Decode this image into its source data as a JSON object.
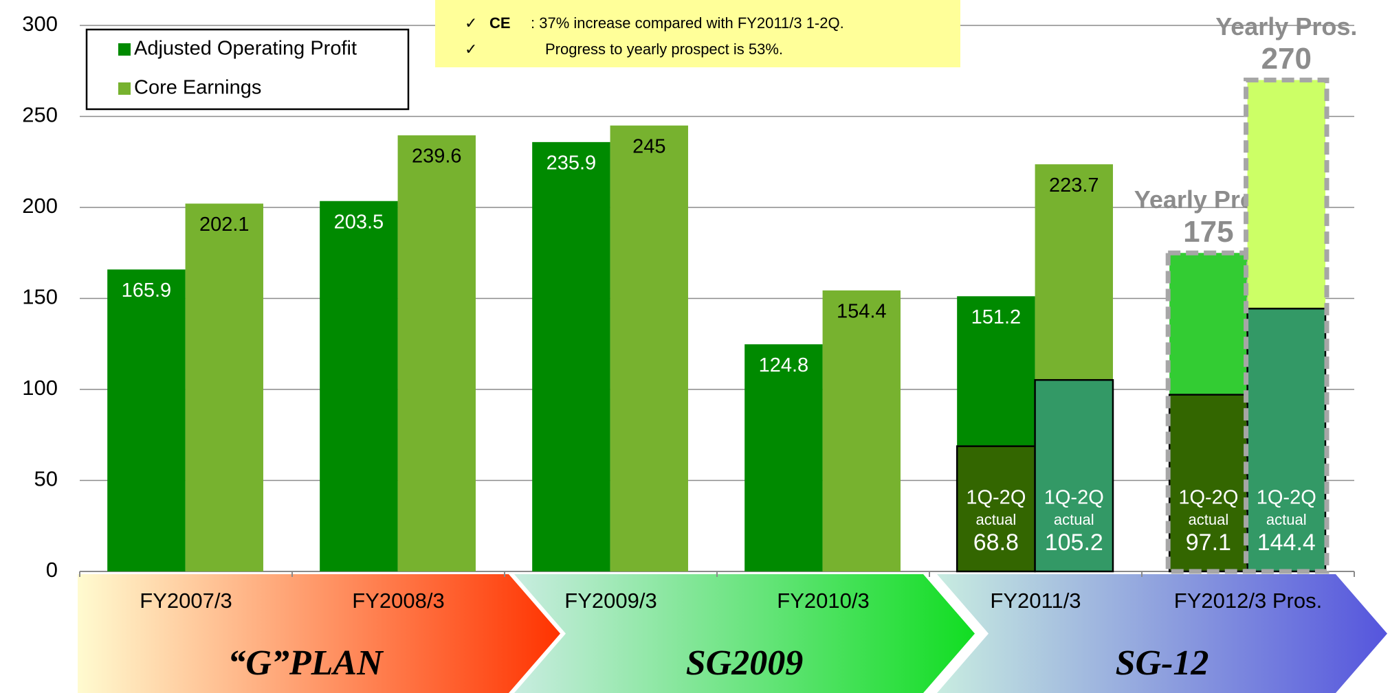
{
  "chart_data": {
    "type": "bar",
    "categories": [
      "FY2007/3",
      "FY2008/3",
      "FY2009/3",
      "FY2010/3",
      "FY2011/3",
      "FY2012/3 Pros."
    ],
    "series": [
      {
        "name": "Adjusted Operating Profit",
        "color": "#008a00",
        "prospect_color": "#33cc33",
        "label_color": "#ffffff",
        "values": [
          165.9,
          203.5,
          235.9,
          124.8,
          151.2,
          175.0
        ]
      },
      {
        "name": "Core Earnings",
        "color": "#77b22f",
        "prospect_color": "#ccff66",
        "label_color": "#000000",
        "values": [
          202.1,
          239.6,
          245.0,
          154.4,
          223.7,
          270.0
        ]
      }
    ],
    "prospect_label": "Yearly Pros.",
    "actual": {
      "label": "1Q-2Q",
      "sublabel": "actual",
      "series": [
        {
          "color": "#336600",
          "values": [
            null,
            null,
            null,
            null,
            68.8,
            97.1
          ]
        },
        {
          "color": "#339966",
          "values": [
            null,
            null,
            null,
            null,
            105.2,
            144.4
          ]
        }
      ]
    },
    "ylim": [
      0,
      300
    ],
    "yticks": [
      0,
      50,
      100,
      150,
      200,
      250,
      300
    ],
    "grid": true,
    "legend": "top-left",
    "note": [
      {
        "check": "✓",
        "term": "CE",
        "text": ": 37% increase compared with FY2011/3 1-2Q."
      },
      {
        "check": "✓",
        "text": "Progress to yearly prospect is 53%."
      }
    ],
    "plans": [
      {
        "label": "“G”PLAN",
        "colors": [
          "#fffbd0",
          "#ff3300"
        ]
      },
      {
        "label": "SG2009",
        "colors": [
          "#c8ece0",
          "#11dd22"
        ]
      },
      {
        "label": "SG-12",
        "colors": [
          "#c8ece0",
          "#5555dd"
        ]
      }
    ]
  }
}
